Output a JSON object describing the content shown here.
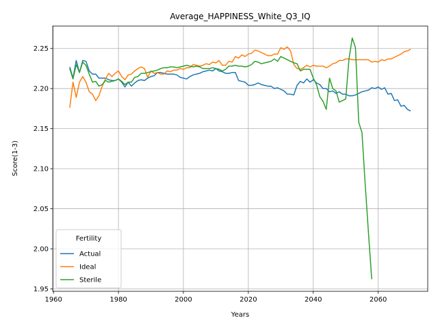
{
  "chart_data": {
    "type": "line",
    "title": "Average_HAPPINESS_White_Q3_IQ",
    "xlabel": "Years",
    "ylabel": "Score(1-3)",
    "x": [
      1965,
      1966,
      1967,
      1968,
      1969,
      1970,
      1971,
      1972,
      1973,
      1974,
      1975,
      1976,
      1977,
      1978,
      1979,
      1980,
      1981,
      1982,
      1983,
      1984,
      1985,
      1986,
      1987,
      1988,
      1989,
      1990,
      1991,
      1992,
      1993,
      1994,
      1995,
      1996,
      1997,
      1998,
      1999,
      2000,
      2001,
      2002,
      2003,
      2004,
      2005,
      2006,
      2007,
      2008,
      2009,
      2010,
      2011,
      2012,
      2013,
      2014,
      2015,
      2016,
      2017,
      2018,
      2019,
      2020,
      2021,
      2022,
      2023,
      2024,
      2025,
      2026,
      2027,
      2028,
      2029,
      2030,
      2031,
      2032,
      2033,
      2034,
      2035,
      2036,
      2037,
      2038,
      2039,
      2040,
      2041,
      2042,
      2043,
      2044,
      2045,
      2046,
      2047,
      2048,
      2049,
      2050,
      2051,
      2052,
      2053,
      2054,
      2055,
      2056,
      2057,
      2058,
      2059,
      2060,
      2061,
      2062,
      2063,
      2064,
      2065,
      2066,
      2067,
      2068,
      2069,
      2070
    ],
    "series": [
      {
        "name": "Actual",
        "color": "#1f77b4",
        "values": [
          2.227,
          2.213,
          2.235,
          2.22,
          2.235,
          2.234,
          2.222,
          2.218,
          2.218,
          2.213,
          2.213,
          2.213,
          2.211,
          2.21,
          2.21,
          2.212,
          2.208,
          2.202,
          2.208,
          2.203,
          2.207,
          2.21,
          2.211,
          2.21,
          2.213,
          2.215,
          2.216,
          2.22,
          2.22,
          2.219,
          2.218,
          2.218,
          2.218,
          2.217,
          2.214,
          2.213,
          2.212,
          2.215,
          2.217,
          2.218,
          2.219,
          2.221,
          2.222,
          2.223,
          2.222,
          2.225,
          2.222,
          2.221,
          2.219,
          2.219,
          2.22,
          2.22,
          2.21,
          2.209,
          2.208,
          2.204,
          2.204,
          2.205,
          2.207,
          2.205,
          2.204,
          2.203,
          2.203,
          2.2,
          2.201,
          2.199,
          2.197,
          2.193,
          2.193,
          2.192,
          2.204,
          2.209,
          2.207,
          2.212,
          2.208,
          2.211,
          2.207,
          2.205,
          2.2,
          2.2,
          2.196,
          2.197,
          2.194,
          2.196,
          2.193,
          2.193,
          2.191,
          2.191,
          2.192,
          2.194,
          2.196,
          2.197,
          2.198,
          2.201,
          2.2,
          2.202,
          2.199,
          2.201,
          2.193,
          2.194,
          2.185,
          2.186,
          2.178,
          2.179,
          2.174,
          2.172
        ]
      },
      {
        "name": "Ideal",
        "color": "#ff7f0e",
        "values": [
          2.176,
          2.208,
          2.189,
          2.208,
          2.215,
          2.208,
          2.196,
          2.193,
          2.185,
          2.191,
          2.203,
          2.212,
          2.219,
          2.215,
          2.219,
          2.222,
          2.215,
          2.211,
          2.217,
          2.218,
          2.222,
          2.225,
          2.227,
          2.225,
          2.214,
          2.222,
          2.219,
          2.22,
          2.218,
          2.218,
          2.222,
          2.221,
          2.223,
          2.223,
          2.225,
          2.224,
          2.226,
          2.226,
          2.23,
          2.229,
          2.228,
          2.229,
          2.231,
          2.23,
          2.233,
          2.232,
          2.235,
          2.229,
          2.229,
          2.234,
          2.233,
          2.24,
          2.238,
          2.242,
          2.24,
          2.243,
          2.244,
          2.248,
          2.247,
          2.245,
          2.243,
          2.241,
          2.241,
          2.243,
          2.243,
          2.251,
          2.249,
          2.252,
          2.247,
          2.23,
          2.225,
          2.224,
          2.226,
          2.229,
          2.227,
          2.229,
          2.228,
          2.228,
          2.228,
          2.226,
          2.228,
          2.231,
          2.232,
          2.235,
          2.235,
          2.237,
          2.237,
          2.236,
          2.236,
          2.236,
          2.236,
          2.236,
          2.236,
          2.233,
          2.234,
          2.233,
          2.236,
          2.235,
          2.237,
          2.237,
          2.239,
          2.241,
          2.243,
          2.246,
          2.247,
          2.249
        ]
      },
      {
        "name": "Sterile",
        "color": "#2ca02c",
        "values": [
          2.225,
          2.212,
          2.23,
          2.22,
          2.233,
          2.229,
          2.218,
          2.208,
          2.209,
          2.203,
          2.205,
          2.21,
          2.208,
          2.209,
          2.21,
          2.212,
          2.209,
          2.205,
          2.208,
          2.208,
          2.214,
          2.215,
          2.219,
          2.219,
          2.22,
          2.221,
          2.222,
          2.223,
          2.225,
          2.226,
          2.226,
          2.227,
          2.227,
          2.226,
          2.227,
          2.228,
          2.229,
          2.228,
          2.227,
          2.228,
          2.227,
          2.225,
          2.225,
          2.225,
          2.226,
          2.225,
          2.224,
          2.222,
          2.224,
          2.228,
          2.228,
          2.229,
          2.228,
          2.228,
          2.227,
          2.228,
          2.23,
          2.234,
          2.233,
          2.231,
          2.232,
          2.233,
          2.234,
          2.237,
          2.234,
          2.24,
          2.238,
          2.236,
          2.234,
          2.232,
          2.231,
          2.222,
          2.224,
          2.224,
          2.224,
          2.213,
          2.205,
          2.19,
          2.184,
          2.174,
          2.213,
          2.2,
          2.197,
          2.183,
          2.185,
          2.187,
          2.237,
          2.263,
          2.251,
          2.158,
          2.145,
          2.08,
          2.02,
          1.962,
          null,
          null,
          null,
          null,
          null,
          null,
          null,
          null,
          null,
          null,
          null,
          null
        ]
      }
    ],
    "xlim": [
      1959.75,
      2075.25
    ],
    "ylim": [
      1.947,
      2.278
    ],
    "xticks": [
      1960,
      1980,
      2000,
      2020,
      2040,
      2060
    ],
    "yticks": [
      1.95,
      {
        "value": 2,
        "label": "2.00"
      },
      2.05,
      {
        "value": 2.1,
        "label": "2.10"
      },
      2.15,
      {
        "value": 2.2,
        "label": "2.20"
      },
      2.25
    ],
    "grid": true,
    "legend": {
      "title": "Fertility",
      "loc": "lower left"
    }
  }
}
